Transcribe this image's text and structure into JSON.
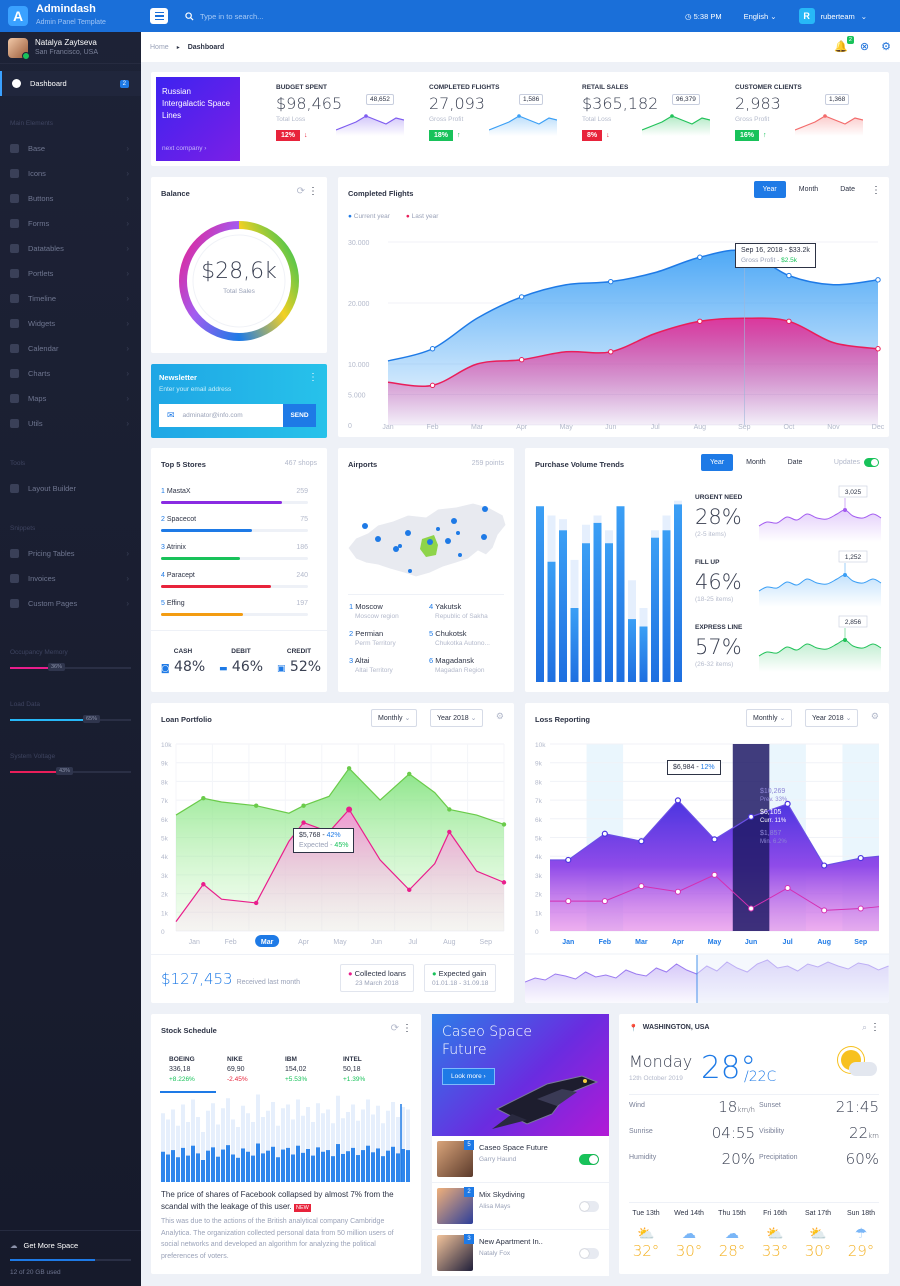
{
  "app": {
    "logo": "A",
    "name": "Admindash",
    "tagline": "Admin Panel Template"
  },
  "user": {
    "name": "Natalya Zaytseva",
    "location": "San Francisco, USA"
  },
  "sidebar": {
    "dashboard": {
      "label": "Dashboard",
      "badge": "2"
    },
    "main_header": "Main Elements",
    "main_items": [
      "Base",
      "Icons",
      "Buttons",
      "Forms",
      "Datatables",
      "Portlets",
      "Timeline",
      "Widgets",
      "Calendar",
      "Charts",
      "Maps",
      "Utils"
    ],
    "tools_header": "Tools",
    "tools_items": [
      "Layout Builder"
    ],
    "snippets_header": "Snippets",
    "snippets_items": [
      "Pricing Tables",
      "Invoices",
      "Custom Pages"
    ],
    "meters": [
      {
        "label": "Occupancy Memory",
        "value": "36%",
        "fraction": 0.36,
        "color": "#e91e8c"
      },
      {
        "label": "Load Data",
        "value": "65%",
        "fraction": 0.65,
        "color": "#27b8f7"
      },
      {
        "label": "System Voltage",
        "value": "43%",
        "fraction": 0.43,
        "color": "#e91e5a"
      }
    ],
    "space": {
      "title": "Get More Space",
      "usage": "12 of 20 GB used",
      "fraction": 0.7
    }
  },
  "topbar": {
    "search_placeholder": "Type in to search...",
    "time": "5:38 PM",
    "language": "English",
    "user_initial": "R",
    "username": "ruberteam"
  },
  "breadcrumb": {
    "home": "Home",
    "current": "Dashboard",
    "notifications": "2"
  },
  "promo_top": {
    "title": "Russian Intergalactic Space Lines",
    "link": "next company"
  },
  "kpis": [
    {
      "title": "BUDGET SPENT",
      "value": "$98,465",
      "sub": "Total Loss",
      "pct": "12%",
      "dir": "down",
      "label": "48,652",
      "color": "#7e5cf0"
    },
    {
      "title": "COMPLETED FLIGHTS",
      "value": "27,093",
      "sub": "Gross Profit",
      "pct": "18%",
      "dir": "up",
      "label": "1,586",
      "color": "#3b9ff5"
    },
    {
      "title": "RETAIL SALES",
      "value": "$365,182",
      "sub": "Total Loss",
      "pct": "8%",
      "dir": "down",
      "label": "96,379",
      "color": "#22c25a"
    },
    {
      "title": "CUSTOMER CLIENTS",
      "value": "2,983",
      "sub": "Gross Profit",
      "pct": "16%",
      "dir": "up",
      "label": "1,368",
      "color": "#f36b6b"
    }
  ],
  "balance": {
    "title": "Balance",
    "value": "$28,6k",
    "label": "Total Sales"
  },
  "newsletter": {
    "title": "Newsletter",
    "sub": "Enter your email address",
    "placeholder": "adminator@info.com",
    "button": "SEND"
  },
  "flights": {
    "title": "Completed Flights",
    "tabs": [
      "Year",
      "Month",
      "Date"
    ],
    "legend": [
      "Current year",
      "Last year"
    ],
    "tooltip": {
      "date": "Sep 16, 2018 - $33.2k",
      "label": "Gross Profit -",
      "value": "$2.5k"
    }
  },
  "stores": {
    "title": "Top 5 Stores",
    "count": "467 shops",
    "items": [
      {
        "rank": "1",
        "name": "MastaX",
        "value": "259",
        "fraction": 0.82,
        "color": "#8a2be2"
      },
      {
        "rank": "2",
        "name": "Spacecot",
        "value": "75",
        "fraction": 0.62,
        "color": "#1e7ae6"
      },
      {
        "rank": "3",
        "name": "Atrinix",
        "value": "186",
        "fraction": 0.54,
        "color": "#18c25a"
      },
      {
        "rank": "4",
        "name": "Paracept",
        "value": "240",
        "fraction": 0.75,
        "color": "#e8233b"
      },
      {
        "rank": "5",
        "name": "Effing",
        "value": "197",
        "fraction": 0.56,
        "color": "#f39c12"
      }
    ],
    "payments": [
      {
        "label": "CASH",
        "value": "48%"
      },
      {
        "label": "DEBIT",
        "value": "46%"
      },
      {
        "label": "CREDIT",
        "value": "52%"
      }
    ]
  },
  "airports": {
    "title": "Airports",
    "count": "259 points",
    "items": [
      {
        "n": "1",
        "name": "Moscow",
        "region": "Moscow region"
      },
      {
        "n": "4",
        "name": "Yakutsk",
        "region": "Republic of Sakha"
      },
      {
        "n": "2",
        "name": "Permian",
        "region": "Perm Territory"
      },
      {
        "n": "5",
        "name": "Chukotsk",
        "region": "Chukotka Autono..."
      },
      {
        "n": "3",
        "name": "Altai",
        "region": "Altai Territory"
      },
      {
        "n": "6",
        "name": "Magadansk",
        "region": "Magadan Region"
      }
    ]
  },
  "purchase": {
    "title": "Purchase Volume Trends",
    "tabs": [
      "Year",
      "Month",
      "Date"
    ],
    "updates": "Updates",
    "items": [
      {
        "title": "URGENT NEED",
        "value": "28%",
        "sub": "(2-5 items)",
        "label": "3,025",
        "color": "#a35cf0"
      },
      {
        "title": "FILL UP",
        "value": "46%",
        "sub": "(18-25 items)",
        "label": "1,252",
        "color": "#3b9ff5"
      },
      {
        "title": "EXPRESS LINE",
        "value": "57%",
        "sub": "(26-32 items)",
        "label": "2,856",
        "color": "#22c25a"
      }
    ]
  },
  "loan": {
    "title": "Loan Portfolio",
    "period": "Monthly",
    "year": "Year 2018",
    "total": "$127,453",
    "total_sub": "Received last month",
    "tooltip": {
      "value": "$5,768 -",
      "pct": "42%",
      "label": "Expected -",
      "expected": "45%"
    },
    "legend": [
      {
        "title": "Collected loans",
        "sub": "23 March 2018",
        "color": "#e91e8c"
      },
      {
        "title": "Expected gain",
        "sub": "01.01.18 - 31.09.18",
        "color": "#18c25a"
      }
    ]
  },
  "loss": {
    "title": "Loss Reporting",
    "period": "Monthly",
    "year": "Year 2018",
    "tooltip": {
      "value": "$6,984 -",
      "pct": "12%"
    },
    "highlight": {
      "top": "$10,269",
      "prev": "Prev. 33%",
      "value": "$6,105",
      "curr": "Curr. 11%",
      "min": "$1,857",
      "min_label": "Min. 6.2%"
    }
  },
  "stocks": {
    "title": "Stock Schedule",
    "items": [
      {
        "name": "BOEING",
        "price": "336,18",
        "change": "+8.226%",
        "up": true
      },
      {
        "name": "NIKE",
        "price": "69,90",
        "change": "-2.45%",
        "up": false
      },
      {
        "name": "IBM",
        "price": "154,02",
        "change": "+5.53%",
        "up": true
      },
      {
        "name": "INTEL",
        "price": "50,18",
        "change": "+1.39%",
        "up": true
      }
    ],
    "headline": "The price of shares of Facebook collapsed by almost 7% from the scandal with the leakage of this user.",
    "new_badge": "NEW",
    "body": "This was due to the actions of the British analytical company Cambridge Analytica. The organization collected personal data from 50 million users of social networks and developed an algorithm for analyzing the political preferences of voters."
  },
  "promo": {
    "title": "Caseo Space Future",
    "button": "Look more ›",
    "items": [
      {
        "n": "5",
        "title": "Caseo Space Future",
        "sub": "Garry Haund",
        "on": true
      },
      {
        "n": "2",
        "title": "Mix Skydiving",
        "sub": "Alisa Mays",
        "on": false
      },
      {
        "n": "3",
        "title": "New Apartment In..",
        "sub": "Nataly Fox",
        "on": false
      }
    ]
  },
  "weather": {
    "location": "WASHINGTON, USA",
    "day": "Monday",
    "date": "12th October 2019",
    "temp": "28°",
    "low": "/22C",
    "stats": [
      {
        "label": "Wind",
        "value": "18",
        "unit": "km/h"
      },
      {
        "label": "Sunset",
        "value": "21:45",
        "unit": ""
      },
      {
        "label": "Sunrise",
        "value": "04:55",
        "unit": ""
      },
      {
        "label": "Visibility",
        "value": "22",
        "unit": "km"
      },
      {
        "label": "Humidity",
        "value": "20%",
        "unit": ""
      },
      {
        "label": "Precipitation",
        "value": "60%",
        "unit": ""
      }
    ],
    "forecast": [
      {
        "day": "Tue 13th",
        "temp": "32°"
      },
      {
        "day": "Wed 14th",
        "temp": "30°"
      },
      {
        "day": "Thu 15th",
        "temp": "28°"
      },
      {
        "day": "Fri 16th",
        "temp": "33°"
      },
      {
        "day": "Sat 17th",
        "temp": "30°"
      },
      {
        "day": "Sun 18th",
        "temp": "29°"
      }
    ]
  },
  "chart_data": [
    {
      "type": "area",
      "title": "Completed Flights",
      "categories": [
        "Jan",
        "Feb",
        "Mar",
        "Apr",
        "May",
        "Jun",
        "Jul",
        "Aug",
        "Sep",
        "Oct",
        "Nov",
        "Dec"
      ],
      "yticks": [
        "30.000",
        "20.000",
        "10.000",
        "5.000",
        "0"
      ],
      "ylim": [
        0,
        30000
      ],
      "series": [
        {
          "name": "Current year",
          "values": [
            10500,
            12500,
            17500,
            21000,
            23000,
            23500,
            25000,
            27500,
            28500,
            24500,
            23000,
            23800
          ]
        },
        {
          "name": "Last year",
          "values": [
            7000,
            6500,
            10000,
            10700,
            12000,
            12000,
            15000,
            17000,
            17500,
            17000,
            13500,
            12500
          ]
        }
      ]
    },
    {
      "type": "bar",
      "title": "Purchase Volume Trends",
      "values": [
        [
          95,
          88
        ],
        [
          65,
          90
        ],
        [
          82,
          88
        ],
        [
          40,
          66
        ],
        [
          75,
          85
        ],
        [
          86,
          90
        ],
        [
          75,
          82
        ],
        [
          95,
          88
        ],
        [
          34,
          55
        ],
        [
          30,
          40
        ],
        [
          78,
          82
        ],
        [
          82,
          90
        ],
        [
          96,
          98
        ]
      ]
    },
    {
      "type": "area",
      "title": "Loan Portfolio",
      "categories": [
        "Jan",
        "Feb",
        "Mar",
        "Apr",
        "May",
        "Jun",
        "Jul",
        "Aug",
        "Sep"
      ],
      "yticks": [
        "10k",
        "9k",
        "8k",
        "7k",
        "6k",
        "5k",
        "4k",
        "3k",
        "2k",
        "1k",
        "0"
      ],
      "ylim": [
        0,
        10000
      ],
      "series": [
        {
          "name": "Expected gain",
          "x": [
            0,
            0.75,
            1.25,
            2.2,
            3.1,
            3.5,
            4.2,
            4.75,
            5.6,
            6.4,
            7.1,
            7.5,
            8.25,
            9
          ],
          "values": [
            6200,
            7100,
            6900,
            6700,
            6300,
            6700,
            7200,
            8700,
            7000,
            8400,
            7400,
            6500,
            6200,
            5700
          ]
        },
        {
          "name": "Collected loans",
          "x": [
            0,
            0.75,
            1.25,
            2.2,
            3.1,
            3.5,
            4.2,
            4.75,
            5.6,
            6.4,
            7.1,
            7.5,
            8.25,
            9
          ],
          "values": [
            500,
            2500,
            1700,
            1500,
            4800,
            5800,
            5300,
            6500,
            3800,
            2200,
            3600,
            5300,
            3200,
            2600
          ]
        }
      ]
    },
    {
      "type": "area",
      "title": "Loss Reporting",
      "categories": [
        "Jan",
        "Feb",
        "Mar",
        "Apr",
        "May",
        "Jun",
        "Jul",
        "Aug",
        "Sep"
      ],
      "yticks": [
        "10k",
        "9k",
        "8k",
        "7k",
        "6k",
        "5k",
        "4k",
        "3k",
        "2k",
        "1k",
        "0"
      ],
      "ylim": [
        0,
        10000
      ],
      "series": [
        {
          "name": "Loss",
          "values": [
            3800,
            5200,
            4800,
            6984,
            4900,
            6105,
            6800,
            3500,
            3900
          ]
        },
        {
          "name": "Min",
          "values": [
            1600,
            1600,
            2400,
            2100,
            3000,
            1200,
            2300,
            1100,
            1200
          ]
        }
      ]
    },
    {
      "type": "bar",
      "title": "Stock Schedule",
      "values": [
        55,
        50,
        58,
        45,
        62,
        48,
        66,
        52,
        40,
        57,
        63,
        46,
        59,
        67,
        50,
        44,
        61,
        55,
        48,
        70,
        52,
        57,
        64,
        45,
        59,
        62,
        50,
        66,
        53,
        60,
        48,
        63,
        55,
        58,
        47,
        69,
        51,
        56,
        62,
        49,
        58,
        66,
        54,
        61,
        47,
        57,
        64,
        52,
        60,
        58
      ]
    }
  ]
}
